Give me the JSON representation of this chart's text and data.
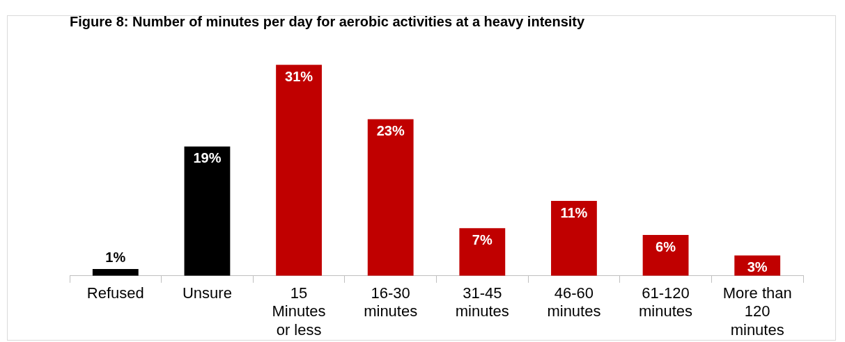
{
  "chart_data": {
    "type": "bar",
    "title": "Figure 8: Number of minutes per day for aerobic activities at a heavy intensity",
    "categories": [
      "Refused",
      "Unsure",
      "15 Minutes or less",
      "16-30 minutes",
      "31-45 minutes",
      "46-60 minutes",
      "61-120 minutes",
      "More than 120 minutes"
    ],
    "values": [
      1,
      19,
      31,
      23,
      7,
      11,
      6,
      3
    ],
    "value_labels": [
      "1%",
      "19%",
      "31%",
      "23%",
      "7%",
      "11%",
      "6%",
      "3%"
    ],
    "colors": [
      "#000000",
      "#000000",
      "#c00000",
      "#c00000",
      "#c00000",
      "#c00000",
      "#c00000",
      "#c00000"
    ],
    "grid": false,
    "legend": false
  }
}
